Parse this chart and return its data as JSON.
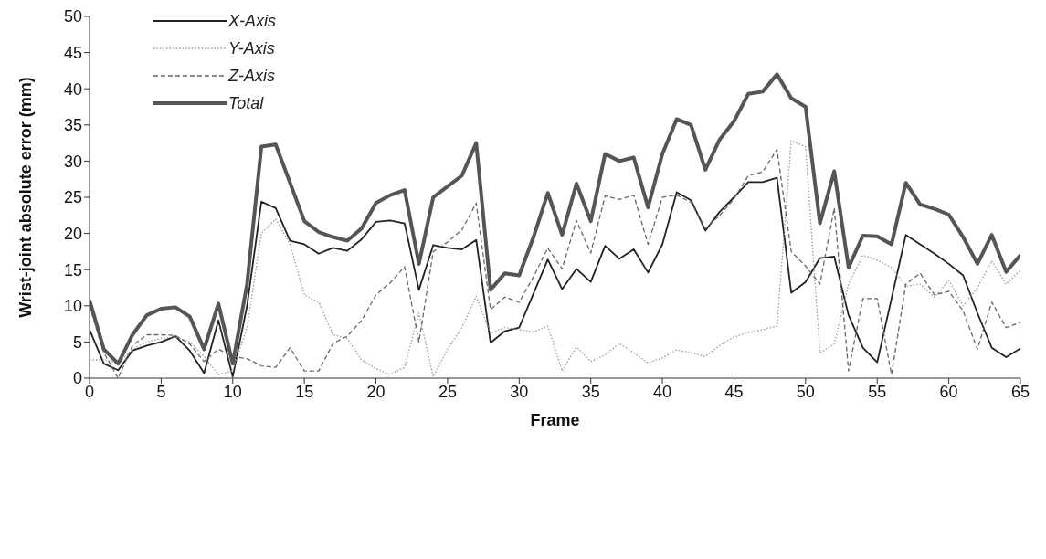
{
  "chart_data": {
    "type": "line",
    "xlabel": "Frame",
    "ylabel": "Wrist-joint absolute error (mm)",
    "x": [
      0,
      1,
      2,
      3,
      4,
      5,
      6,
      7,
      8,
      9,
      10,
      11,
      12,
      13,
      14,
      15,
      16,
      17,
      18,
      19,
      20,
      21,
      22,
      23,
      24,
      25,
      26,
      27,
      28,
      29,
      30,
      31,
      32,
      33,
      34,
      35,
      36,
      37,
      38,
      39,
      40,
      41,
      42,
      43,
      44,
      45,
      46,
      47,
      48,
      49,
      50,
      51,
      52,
      53,
      54,
      55,
      56,
      57,
      58,
      59,
      60,
      61,
      62,
      63,
      64,
      65
    ],
    "xlim": [
      0,
      65
    ],
    "xticks": [
      0,
      5,
      10,
      15,
      20,
      25,
      30,
      35,
      40,
      45,
      50,
      55,
      60,
      65
    ],
    "ylim": [
      0,
      50
    ],
    "yticks": [
      0,
      5,
      10,
      15,
      20,
      25,
      30,
      35,
      40,
      45,
      50
    ],
    "grid": false,
    "legend": "top left",
    "marker": "none",
    "series": [
      {
        "name": "X-Axis",
        "color": "#222222",
        "line_style": "solid",
        "values": [
          6.7,
          2,
          1.1,
          3.8,
          4.5,
          5,
          5.8,
          3.8,
          0.7,
          8,
          0.2,
          10,
          24.4,
          23.5,
          19,
          18.5,
          17.2,
          18,
          17.6,
          19.2,
          21.6,
          21.8,
          21.4,
          12.2,
          18.4,
          18,
          17.8,
          19.1,
          4.9,
          6.5,
          7,
          11.7,
          16.4,
          12.3,
          15.1,
          13.3,
          18.3,
          16.5,
          17.8,
          14.6,
          18.5,
          25.7,
          24.6,
          20.4,
          23,
          25,
          27.1,
          27.1,
          27.7,
          11.8,
          13.3,
          16.6,
          16.8,
          8.7,
          4.2,
          2.2,
          11,
          19.8,
          18.5,
          17.2,
          15.8,
          14.2,
          9,
          4.2,
          2.9,
          4.1
        ]
      },
      {
        "name": "Y-Axis",
        "color": "#999999",
        "line_style": "dotted",
        "values": [
          2.5,
          2.6,
          2,
          4,
          5,
          5.5,
          5.7,
          5,
          3,
          0.5,
          1,
          7,
          20,
          22,
          18.5,
          11.5,
          10.5,
          6,
          5.5,
          2.5,
          1.3,
          0.5,
          1.5,
          9,
          0.2,
          4,
          7,
          11.3,
          6.2,
          7,
          6.7,
          6.4,
          7.2,
          1,
          4.3,
          2.3,
          3.2,
          4.8,
          3.5,
          2.1,
          2.8,
          3.9,
          3.5,
          3,
          4.5,
          5.7,
          6.3,
          6.7,
          7.2,
          32.8,
          32,
          3.5,
          4.7,
          13,
          17,
          16.3,
          15.3,
          12.7,
          13,
          11.2,
          13.5,
          10,
          12.5,
          16.2,
          13,
          14.9
        ]
      },
      {
        "name": "Z-Axis",
        "color": "#666666",
        "line_style": "dashed",
        "values": [
          10,
          3.5,
          0,
          4.5,
          6,
          6,
          5.9,
          4.7,
          2.3,
          4,
          3,
          2.7,
          1.7,
          1.5,
          4.2,
          1,
          1,
          4.8,
          5.8,
          8,
          11.5,
          13.2,
          15.4,
          5,
          17.5,
          18.8,
          20.5,
          24.2,
          9.5,
          11.2,
          10.5,
          14,
          18,
          15.1,
          21.8,
          17.3,
          25.2,
          24.7,
          25.3,
          18.5,
          25,
          25.3,
          24.3,
          20.7,
          22.5,
          24.8,
          28,
          28.5,
          31.6,
          17.5,
          15.5,
          13,
          23.5,
          1,
          11,
          11,
          0.5,
          13,
          14.5,
          11.5,
          12,
          9.3,
          4,
          10.5,
          7,
          7.7
        ]
      },
      {
        "name": "Total",
        "color": "#555555",
        "line_style": "solid",
        "values": [
          10.8,
          4,
          2,
          6,
          8.7,
          9.6,
          9.8,
          8.5,
          4,
          10.3,
          2,
          13,
          32,
          32.3,
          27,
          21.7,
          20.2,
          19.5,
          19,
          20.7,
          24.2,
          25.3,
          26,
          15.8,
          25,
          26.5,
          28,
          32.5,
          12.2,
          14.5,
          14.2,
          19.5,
          25.6,
          19.8,
          26.9,
          21.7,
          31,
          30,
          30.5,
          23.6,
          31,
          35.8,
          35,
          28.8,
          33,
          35.5,
          39.3,
          39.6,
          42,
          38.7,
          37.5,
          21.4,
          28.6,
          15.3,
          19.7,
          19.6,
          18.5,
          27,
          24,
          23.4,
          22.6,
          19.5,
          15.8,
          19.8,
          14.7,
          17
        ]
      }
    ]
  }
}
